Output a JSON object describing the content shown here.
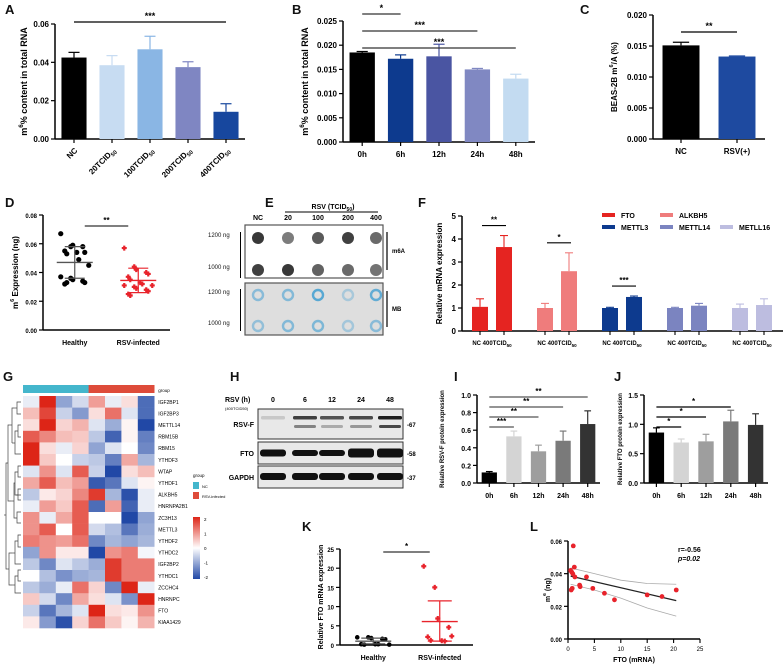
{
  "panel_labels": [
    "A",
    "B",
    "C",
    "D",
    "E",
    "F",
    "G",
    "H",
    "I",
    "J",
    "K",
    "L"
  ],
  "chart_data": [
    {
      "id": "A",
      "type": "bar",
      "ylabel": "m6A% content in total RNA",
      "ylim": [
        0,
        0.06
      ],
      "yticks": [
        "0.00",
        "0.02",
        "0.04",
        "0.06"
      ],
      "categories": [
        "NC",
        "20TCID50",
        "100TCID50",
        "200TCID50",
        "400TCID50"
      ],
      "values": [
        0.0425,
        0.0385,
        0.0468,
        0.0375,
        0.0142
      ],
      "errors": [
        0.0027,
        0.005,
        0.0068,
        0.0028,
        0.0042
      ],
      "colors": [
        "#000000",
        "#c7dcf2",
        "#8ab6e4",
        "#7f86c2",
        "#17479e"
      ],
      "significance": [
        {
          "from": 0,
          "to": 4,
          "label": "***"
        }
      ]
    },
    {
      "id": "B",
      "type": "bar",
      "ylabel": "m6A% content in total RNA",
      "ylim": [
        0,
        0.025
      ],
      "yticks": [
        "0.000",
        "0.005",
        "0.010",
        "0.015",
        "0.020",
        "0.025"
      ],
      "categories": [
        "0h",
        "6h",
        "12h",
        "24h",
        "48h"
      ],
      "values": [
        0.0185,
        0.0172,
        0.0177,
        0.015,
        0.0131
      ],
      "errors": [
        0.0002,
        0.0008,
        0.0025,
        0.0002,
        0.0009
      ],
      "colors": [
        "#000000",
        "#0d3a8e",
        "#4a55a2",
        "#8088c2",
        "#c3dbf1"
      ],
      "significance": [
        {
          "from": 0,
          "to": 1,
          "label": "*"
        },
        {
          "from": 0,
          "to": 3,
          "label": "***"
        },
        {
          "from": 0,
          "to": 4,
          "label": "***"
        }
      ]
    },
    {
      "id": "C",
      "type": "bar",
      "ylabel": "BEAS-2B m6A/A (%)",
      "ylim": [
        0,
        0.02
      ],
      "yticks": [
        "0.000",
        "0.005",
        "0.010",
        "0.015",
        "0.020"
      ],
      "categories": [
        "NC",
        "RSV(+)"
      ],
      "values": [
        0.0151,
        0.0133
      ],
      "errors": [
        0.0005,
        0.0001
      ],
      "colors": [
        "#000000",
        "#1e4aa0"
      ],
      "significance": [
        {
          "from": 0,
          "to": 1,
          "label": "**"
        }
      ]
    },
    {
      "id": "D",
      "type": "scatter",
      "ylabel": "m6A Expression (ng)",
      "ylim": [
        0,
        0.08
      ],
      "yticks": [
        "0.00",
        "0.02",
        "0.04",
        "0.06",
        "0.08"
      ],
      "categories": [
        "Healthy",
        "RSV-infected"
      ],
      "groups": [
        {
          "name": "Healthy",
          "color": "#000000",
          "mean": 0.047,
          "sd_low": 0.036,
          "sd_high": 0.058,
          "points": [
            0.067,
            0.058,
            0.059,
            0.058,
            0.054,
            0.055,
            0.053,
            0.054,
            0.049,
            0.045,
            0.037,
            0.036,
            0.035,
            0.034,
            0.033,
            0.032,
            0.033
          ]
        },
        {
          "name": "RSV-infected",
          "color": "#e8232b",
          "mean": 0.0345,
          "sd_low": 0.026,
          "sd_high": 0.043,
          "points": [
            0.057,
            0.044,
            0.042,
            0.04,
            0.039,
            0.037,
            0.035,
            0.033,
            0.032,
            0.031,
            0.031,
            0.03,
            0.029,
            0.028,
            0.027,
            0.025,
            0.024
          ]
        }
      ],
      "significance": [
        {
          "from": 0,
          "to": 1,
          "label": "**"
        }
      ]
    },
    {
      "id": "E",
      "type": "table",
      "title": "Dot blot",
      "header": "RSV (TCID50)",
      "columns": [
        "NC",
        "20",
        "100",
        "200",
        "400"
      ],
      "rows": [
        "1200 ng",
        "1000 ng",
        "1200 ng",
        "1000 ng"
      ],
      "blocks": [
        {
          "label": "m6A",
          "intensity": [
            [
              0.85,
              0.45,
              0.65,
              0.8,
              0.55
            ],
            [
              0.8,
              0.85,
              0.6,
              0.55,
              0.5
            ]
          ]
        },
        {
          "label": "MB",
          "intensity": [
            [
              0.45,
              0.5,
              0.9,
              0.15,
              0.8
            ],
            [
              0.35,
              0.5,
              0.55,
              0.2,
              0.45
            ]
          ]
        }
      ]
    },
    {
      "id": "F",
      "type": "bar",
      "ylabel": "Relative mRNA expression",
      "ylim": [
        0,
        5
      ],
      "yticks": [
        "0",
        "1",
        "2",
        "3",
        "4",
        "5"
      ],
      "group_label": "NC 400TCID50",
      "series": [
        {
          "name": "FTO",
          "color": "#e52421",
          "values": [
            1.05,
            3.65
          ],
          "errors": [
            0.35,
            0.5
          ],
          "sig": "**"
        },
        {
          "name": "ALKBH5",
          "color": "#ef7c7c",
          "values": [
            1.0,
            2.6
          ],
          "errors": [
            0.2,
            0.8
          ],
          "sig": "*"
        },
        {
          "name": "METTL3",
          "color": "#0d3a8e",
          "values": [
            1.0,
            1.48
          ],
          "errors": [
            0.03,
            0.04
          ],
          "sig": "***"
        },
        {
          "name": "METTL14",
          "color": "#7b84c0",
          "values": [
            1.0,
            1.1
          ],
          "errors": [
            0.03,
            0.1
          ],
          "sig": ""
        },
        {
          "name": "METLL16",
          "color": "#bdbde0",
          "values": [
            1.0,
            1.13
          ],
          "errors": [
            0.17,
            0.27
          ],
          "sig": ""
        }
      ]
    },
    {
      "id": "G",
      "type": "heatmap",
      "top_annotation": "group",
      "columns_group": [
        "NC",
        "NC",
        "NC",
        "NC",
        "RSV-infected",
        "RSV-infected",
        "RSV-infected",
        "RSV-infected"
      ],
      "group_colors": {
        "NC": "#44b6cc",
        "RSV-infected": "#de4b3a"
      },
      "legend_title": "group",
      "legend_items": [
        "NC",
        "RSV-infected"
      ],
      "scale_ticks": [
        "2",
        "1",
        "0",
        "-1",
        "-2"
      ],
      "rows": [
        "IGF2BP1",
        "IGF2BP3",
        "METTL14",
        "RBM15B",
        "RBM15",
        "YTHDF3",
        "WTAP",
        "YTHDF1",
        "ALKBH5",
        "HNRNPA2B1",
        "ZC3H13",
        "METTL3",
        "YTHDF2",
        "YTHDC2",
        "IGF2BP2",
        "YTHDC1",
        "ZCCHC4",
        "HNRNPC",
        "FTO",
        "KIAA1429"
      ],
      "values": [
        [
          -0.2,
          2.0,
          -1.0,
          -0.4,
          0.9,
          -0.2,
          0.3,
          -1.6
        ],
        [
          0.6,
          1.7,
          -0.5,
          -1.1,
          0.3,
          1.3,
          -0.3,
          -1.6
        ],
        [
          0.3,
          2.0,
          0.4,
          0.7,
          -0.3,
          -0.9,
          0.1,
          -2.0
        ],
        [
          1.5,
          1.1,
          0.6,
          0.5,
          -0.6,
          -1.7,
          0.1,
          -1.4
        ],
        [
          2.0,
          0.3,
          -0.2,
          0.4,
          -1.0,
          -0.3,
          0.0,
          -1.3
        ],
        [
          2.0,
          0.5,
          0.0,
          -0.5,
          -0.6,
          -1.4,
          0.8,
          -0.8
        ],
        [
          -0.3,
          1.0,
          -0.3,
          1.5,
          -0.5,
          -2.0,
          0.3,
          0.6
        ],
        [
          0.8,
          1.5,
          0.6,
          0.9,
          -1.8,
          -1.5,
          -0.3,
          0.1
        ],
        [
          -0.6,
          0.2,
          0.4,
          1.1,
          1.8,
          -0.8,
          -1.9,
          -0.2
        ],
        [
          -0.2,
          0.9,
          0.5,
          1.5,
          -1.6,
          0.9,
          -1.7,
          -0.2
        ],
        [
          1.0,
          -0.2,
          0.8,
          1.5,
          0.0,
          0.0,
          -2.0,
          -1.0
        ],
        [
          1.0,
          1.5,
          0.0,
          1.5,
          -0.4,
          -0.7,
          -1.5,
          -0.9
        ],
        [
          1.2,
          1.0,
          0.9,
          1.3,
          -1.3,
          -0.8,
          -1.0,
          -0.8
        ],
        [
          -1.0,
          1.0,
          0.2,
          0.2,
          -2.0,
          1.0,
          1.2,
          -0.1
        ],
        [
          -0.6,
          -1.3,
          -0.3,
          -0.6,
          -0.9,
          1.8,
          1.2,
          1.2
        ],
        [
          0.0,
          -0.7,
          -1.2,
          -0.9,
          -0.8,
          1.8,
          1.2,
          1.2
        ],
        [
          -0.6,
          -0.9,
          -0.2,
          1.3,
          0.4,
          -1.3,
          2.0,
          -0.2
        ],
        [
          0.5,
          -0.4,
          -1.3,
          0.8,
          0.3,
          -0.3,
          -1.2,
          2.0
        ],
        [
          -0.5,
          -1.5,
          -0.8,
          -0.3,
          2.0,
          0.3,
          0.2,
          1.0
        ],
        [
          0.2,
          -1.1,
          -1.9,
          0.4,
          1.3,
          0.5,
          0.1,
          0.7
        ]
      ]
    },
    {
      "id": "H",
      "type": "table",
      "title": "Western blot",
      "header_label": "RSV (h)",
      "header_sub": "(400TCID50)",
      "columns": [
        "0",
        "6",
        "12",
        "24",
        "48"
      ],
      "rows": [
        {
          "label": "RSV-F",
          "kda": "-67"
        },
        {
          "label": "FTO",
          "kda": "-58"
        },
        {
          "label": "GAPDH",
          "kda": "-37"
        }
      ]
    },
    {
      "id": "I",
      "type": "bar",
      "ylabel": "Relative RSV-F protein expression",
      "ylim": [
        0,
        1.0
      ],
      "yticks": [
        "0.0",
        "0.2",
        "0.4",
        "0.6",
        "0.8",
        "1.0"
      ],
      "categories": [
        "0h",
        "6h",
        "12h",
        "24h",
        "48h"
      ],
      "values": [
        0.12,
        0.53,
        0.36,
        0.48,
        0.67
      ],
      "errors": [
        0.01,
        0.06,
        0.07,
        0.11,
        0.15
      ],
      "colors": [
        "#000000",
        "#d4d4d4",
        "#9e9e9e",
        "#7a7a7a",
        "#333333"
      ],
      "significance": [
        {
          "from": 0,
          "to": 1,
          "label": "***"
        },
        {
          "from": 0,
          "to": 2,
          "label": "**"
        },
        {
          "from": 0,
          "to": 3,
          "label": "**"
        },
        {
          "from": 0,
          "to": 4,
          "label": "**"
        }
      ]
    },
    {
      "id": "J",
      "type": "bar",
      "ylabel": "Relative FTO protein expression",
      "ylim": [
        0,
        1.5
      ],
      "yticks": [
        "0.0",
        "0.5",
        "1.0",
        "1.5"
      ],
      "categories": [
        "0h",
        "6h",
        "12h",
        "24h",
        "48h"
      ],
      "values": [
        0.86,
        0.69,
        0.71,
        1.05,
        0.99
      ],
      "errors": [
        0.08,
        0.06,
        0.12,
        0.19,
        0.19
      ],
      "colors": [
        "#000000",
        "#d4d4d4",
        "#9e9e9e",
        "#7a7a7a",
        "#333333"
      ],
      "significance": [
        {
          "from": 0,
          "to": 1,
          "label": "*"
        },
        {
          "from": 0,
          "to": 2,
          "label": "*"
        },
        {
          "from": 0,
          "to": 3,
          "label": "*"
        }
      ]
    },
    {
      "id": "K",
      "type": "scatter",
      "ylabel": "Relative FTO mRNA expression",
      "ylim": [
        0,
        25
      ],
      "yticks": [
        "0",
        "5",
        "10",
        "15",
        "20",
        "25"
      ],
      "categories": [
        "Healthy",
        "RSV-infected"
      ],
      "groups": [
        {
          "name": "Healthy",
          "color": "#000000",
          "mean": 1.0,
          "sd_low": 0.3,
          "sd_high": 1.8,
          "points": [
            2.0,
            2.0,
            1.8,
            1.6,
            1.5,
            0.2,
            0.1,
            0.2,
            0.2,
            0.1
          ]
        },
        {
          "name": "RSV-infected",
          "color": "#e8232b",
          "mean": 6.1,
          "sd_low": 1.0,
          "sd_high": 11.5,
          "points": [
            20.5,
            15.0,
            6.9,
            4.6,
            2.3,
            2.1,
            1.2,
            1.1,
            1.0
          ]
        }
      ],
      "significance": [
        {
          "from": 0,
          "to": 1,
          "label": "*"
        }
      ]
    },
    {
      "id": "L",
      "type": "scatter",
      "xlabel": "FTO (mRNA)",
      "ylabel": "m6A (ng)",
      "xlim": [
        0,
        25
      ],
      "ylim": [
        0,
        0.06
      ],
      "xticks": [
        "0",
        "5",
        "10",
        "15",
        "20",
        "25"
      ],
      "yticks": [
        "0.00",
        "0.02",
        "0.04",
        "0.06"
      ],
      "annotation": [
        "r=-0.56",
        "p=0.02"
      ],
      "points": [
        [
          1.0,
          0.057
        ],
        [
          1.2,
          0.044
        ],
        [
          0.5,
          0.042
        ],
        [
          0.7,
          0.041
        ],
        [
          0.9,
          0.04
        ],
        [
          1.3,
          0.038
        ],
        [
          3.5,
          0.038
        ],
        [
          2.2,
          0.033
        ],
        [
          2.3,
          0.032
        ],
        [
          0.8,
          0.031
        ],
        [
          0.6,
          0.03
        ],
        [
          4.7,
          0.031
        ],
        [
          6.9,
          0.028
        ],
        [
          8.8,
          0.024
        ],
        [
          15.0,
          0.027
        ],
        [
          17.8,
          0.026
        ],
        [
          20.5,
          0.03
        ]
      ],
      "fit": {
        "x": [
          0.5,
          20.5
        ],
        "y": [
          0.0385,
          0.0235
        ]
      },
      "ci_upper": [
        [
          0.5,
          0.0435
        ],
        [
          5,
          0.04
        ],
        [
          10,
          0.036
        ],
        [
          15,
          0.034
        ],
        [
          20.5,
          0.0335
        ]
      ],
      "ci_lower": [
        [
          0.5,
          0.0335
        ],
        [
          5,
          0.03
        ],
        [
          10,
          0.025
        ],
        [
          15,
          0.019
        ],
        [
          20.5,
          0.014
        ]
      ]
    }
  ]
}
